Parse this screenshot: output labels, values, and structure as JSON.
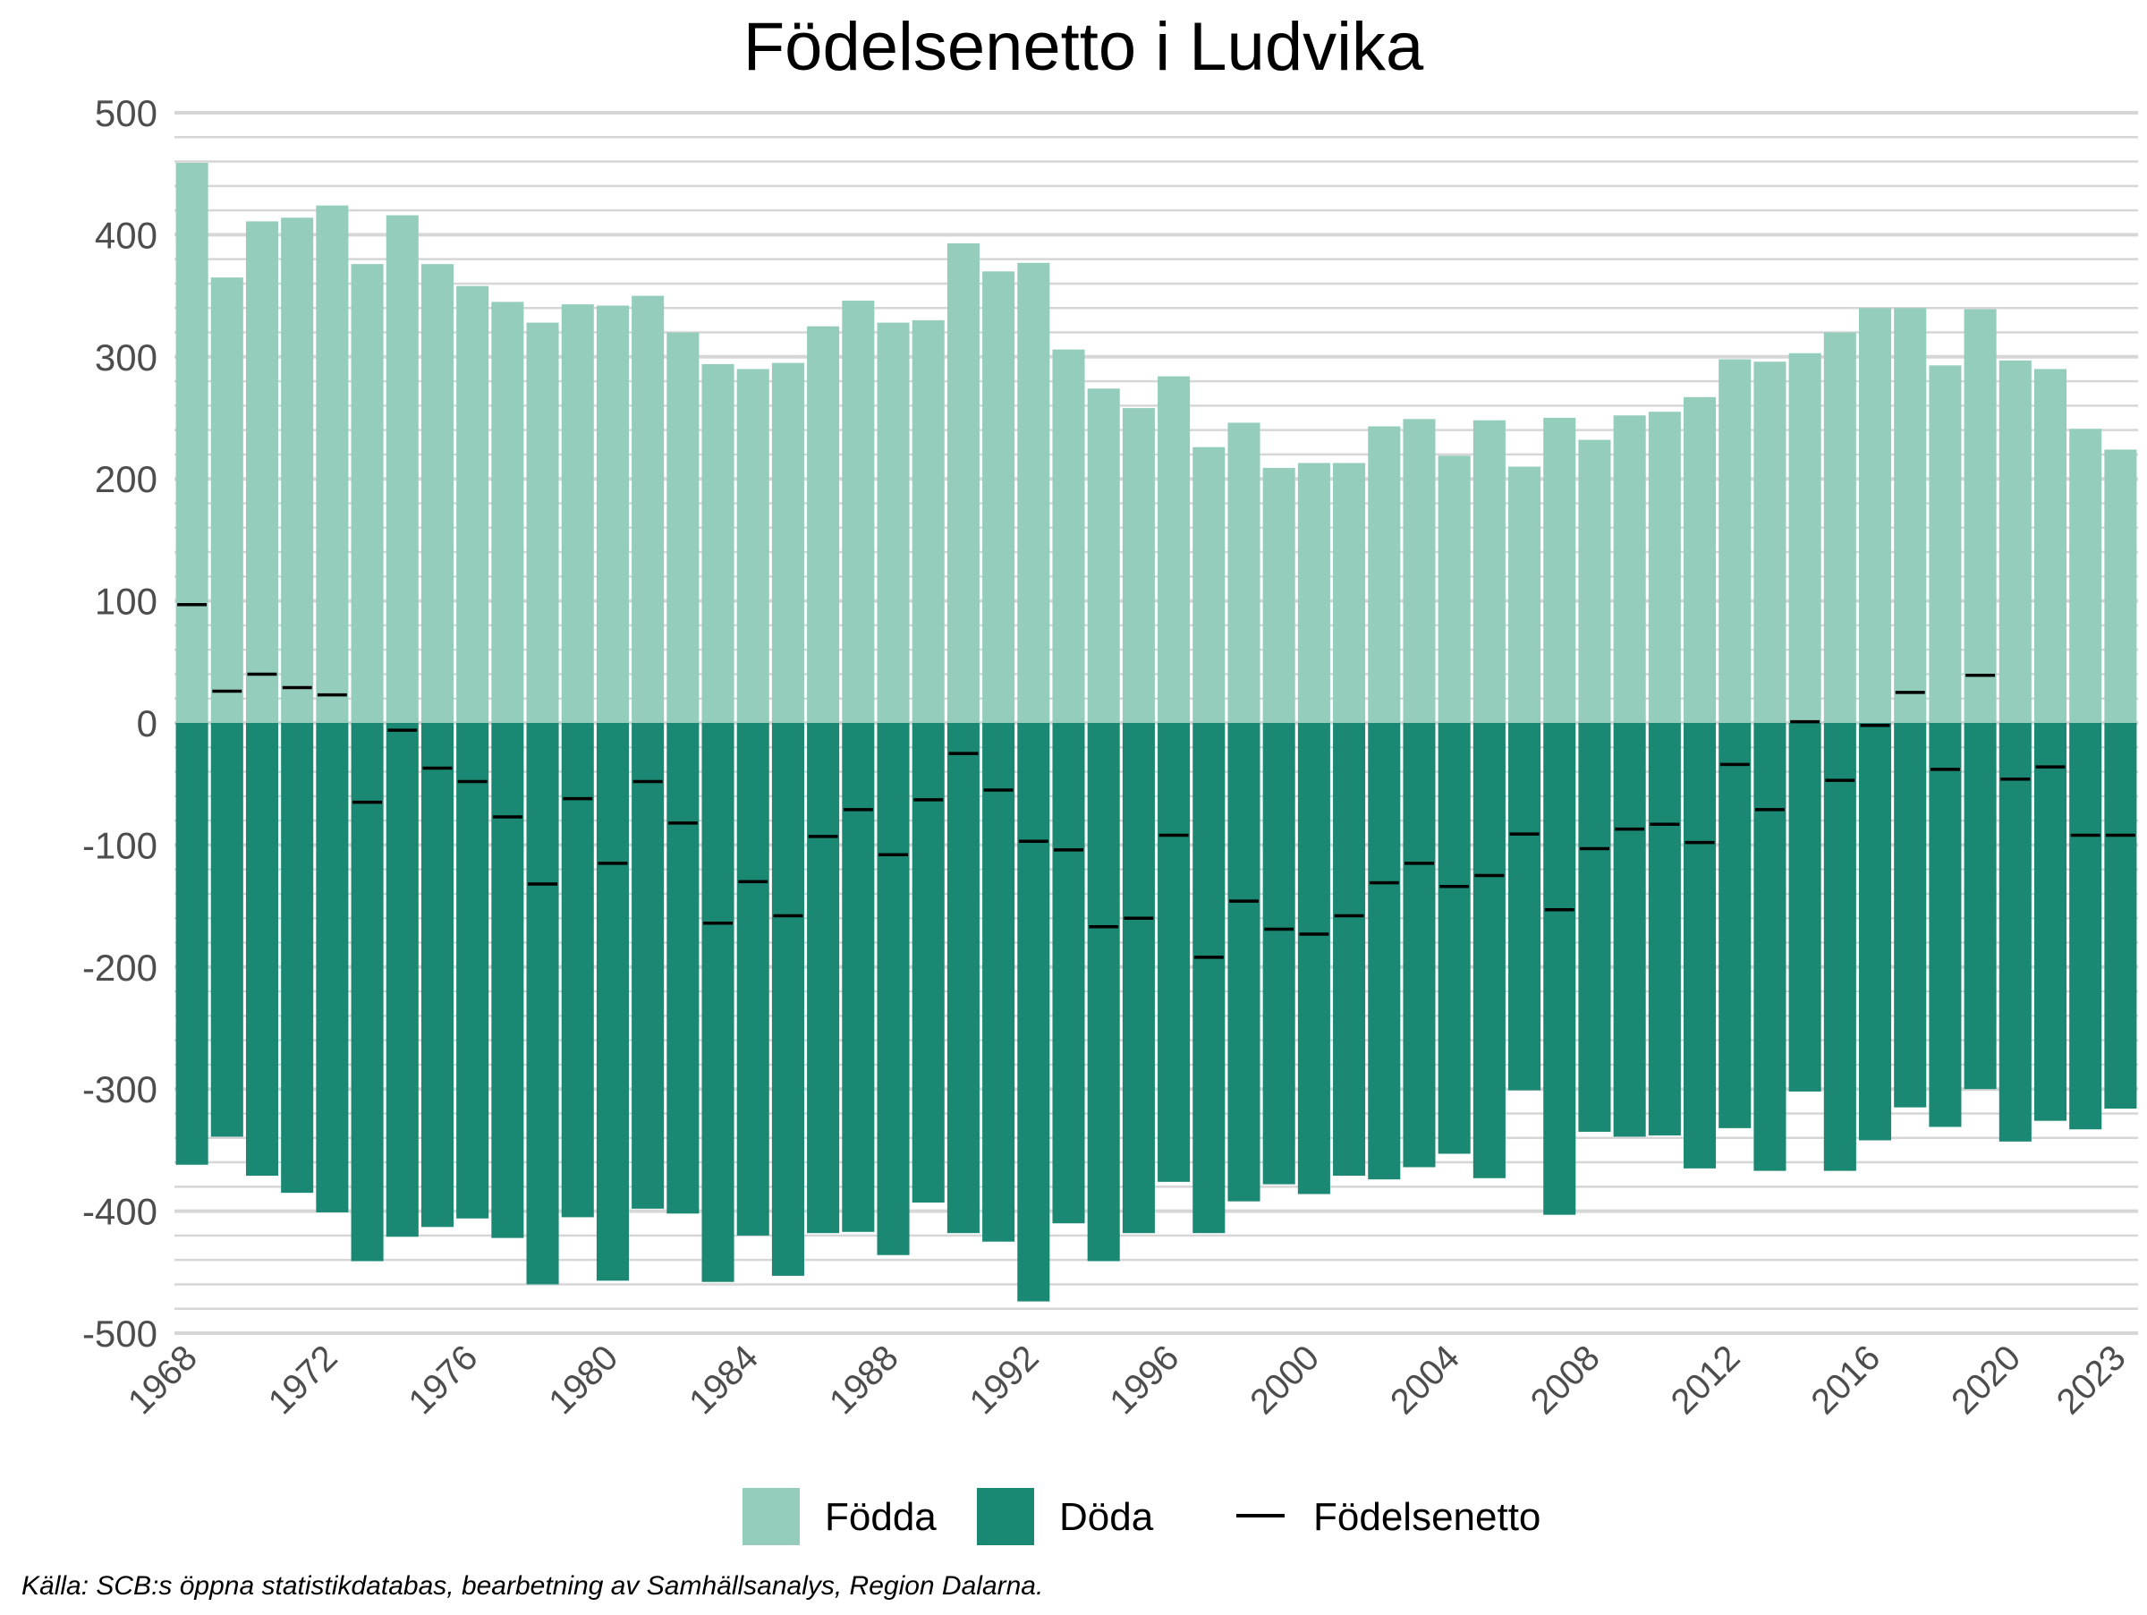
{
  "chart_data": {
    "type": "bar",
    "title": "Födelsenetto i Ludvika",
    "xlabel": "",
    "ylabel": "",
    "ylim": [
      -500,
      500
    ],
    "y_ticks": [
      "500",
      "400",
      "300",
      "200",
      "100",
      "0",
      "-100",
      "-200",
      "-300",
      "-400",
      "-500"
    ],
    "y_tick_values": [
      500,
      400,
      300,
      200,
      100,
      0,
      -100,
      -200,
      -300,
      -400,
      -500
    ],
    "x_tick_labels": [
      "1968",
      "1972",
      "1976",
      "1980",
      "1984",
      "1988",
      "1992",
      "1996",
      "2000",
      "2004",
      "2008",
      "2012",
      "2016",
      "2020",
      "2023"
    ],
    "x_tick_values": [
      1968,
      1972,
      1976,
      1980,
      1984,
      1988,
      1992,
      1996,
      2000,
      2004,
      2008,
      2012,
      2016,
      2020,
      2023
    ],
    "years": [
      1968,
      1969,
      1970,
      1971,
      1972,
      1973,
      1974,
      1975,
      1976,
      1977,
      1978,
      1979,
      1980,
      1981,
      1982,
      1983,
      1984,
      1985,
      1986,
      1987,
      1988,
      1989,
      1990,
      1991,
      1992,
      1993,
      1994,
      1995,
      1996,
      1997,
      1998,
      1999,
      2000,
      2001,
      2002,
      2003,
      2004,
      2005,
      2006,
      2007,
      2008,
      2009,
      2010,
      2011,
      2012,
      2013,
      2014,
      2015,
      2016,
      2017,
      2018,
      2019,
      2020,
      2021,
      2022,
      2023
    ],
    "grid": true,
    "legend_position": "bottom",
    "series": [
      {
        "name": "Födda",
        "color": "#95cdbd",
        "values": [
          459,
          365,
          411,
          414,
          424,
          376,
          416,
          376,
          358,
          345,
          328,
          343,
          342,
          350,
          320,
          294,
          290,
          295,
          325,
          346,
          328,
          330,
          393,
          370,
          377,
          306,
          274,
          258,
          284,
          226,
          246,
          209,
          213,
          213,
          243,
          249,
          219,
          248,
          210,
          250,
          232,
          252,
          255,
          267,
          298,
          296,
          303,
          320,
          340,
          340,
          293,
          339,
          297,
          290,
          241,
          224
        ]
      },
      {
        "name": "Döda",
        "color": "#1a8872",
        "values": [
          -362,
          -339,
          -371,
          -385,
          -401,
          -441,
          -421,
          -413,
          -406,
          -422,
          -460,
          -405,
          -457,
          -398,
          -402,
          -458,
          -420,
          -453,
          -418,
          -417,
          -436,
          -393,
          -418,
          -425,
          -474,
          -410,
          -441,
          -418,
          -376,
          -418,
          -392,
          -378,
          -386,
          -371,
          -374,
          -364,
          -353,
          -373,
          -301,
          -403,
          -335,
          -339,
          -338,
          -365,
          -332,
          -367,
          -302,
          -367,
          -342,
          -315,
          -331,
          -300,
          -343,
          -326,
          -333,
          -316
        ]
      },
      {
        "name": "Födelsenetto",
        "color": "#000000",
        "values": [
          97,
          26,
          40,
          29,
          23,
          -65,
          -6,
          -37,
          -48,
          -77,
          -132,
          -62,
          -115,
          -48,
          -82,
          -164,
          -130,
          -158,
          -93,
          -71,
          -108,
          -63,
          -25,
          -55,
          -97,
          -104,
          -167,
          -160,
          -92,
          -192,
          -146,
          -169,
          -173,
          -158,
          -131,
          -115,
          -134,
          -125,
          -91,
          -153,
          -103,
          -87,
          -83,
          -98,
          -34,
          -71,
          1,
          -47,
          -2,
          25,
          -38,
          39,
          -46,
          -36,
          -92,
          -92
        ]
      }
    ]
  },
  "source_note": "Källa: SCB:s öppna statistikdatabas, bearbetning av Samhällsanalys, Region Dalarna."
}
